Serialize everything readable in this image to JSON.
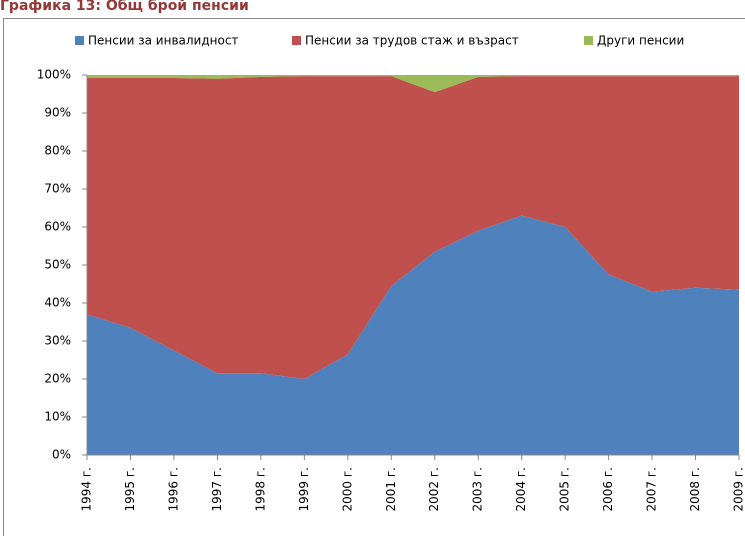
{
  "chart_data": {
    "type": "stacked_area_100",
    "title": "Графика 13: Общ брой пенсии",
    "categories": [
      "1994 г.",
      "1995 г.",
      "1996 г.",
      "1997 г.",
      "1998 г.",
      "1999 г.",
      "2000 г.",
      "2001 г.",
      "2002 г.",
      "2003 г.",
      "2004 г.",
      "2005 г.",
      "2006 г.",
      "2007 г.",
      "2008 г.",
      "2009 г."
    ],
    "series": [
      {
        "name": "Пенсии за инвалидност",
        "color": "#4f81bd",
        "values": [
          37,
          33.5,
          27.5,
          21.5,
          21.5,
          20,
          26.5,
          44.5,
          53.5,
          59,
          63,
          60,
          47.5,
          43,
          44,
          43.5
        ]
      },
      {
        "name": "Пенсии за трудов стаж и възраст",
        "color": "#c0504d",
        "values": [
          62.2,
          65.7,
          71.7,
          77.5,
          78,
          79.7,
          73.2,
          55.2,
          42,
          40.5,
          36.7,
          39.7,
          52.2,
          56.7,
          55.7,
          56.2
        ]
      },
      {
        "name": "Други пенсии",
        "color": "#9bbb59",
        "values": [
          0.8,
          0.8,
          0.8,
          1,
          0.5,
          0.3,
          0.3,
          0.3,
          4.5,
          0.5,
          0.3,
          0.3,
          0.3,
          0.3,
          0.3,
          0.3
        ]
      }
    ],
    "ylim": [
      0,
      100
    ],
    "yticks": [
      {
        "value": 0,
        "label": "0%"
      },
      {
        "value": 10,
        "label": "10%"
      },
      {
        "value": 20,
        "label": "20%"
      },
      {
        "value": 30,
        "label": "30%"
      },
      {
        "value": 40,
        "label": "40%"
      },
      {
        "value": 50,
        "label": "50%"
      },
      {
        "value": 60,
        "label": "60%"
      },
      {
        "value": 70,
        "label": "70%"
      },
      {
        "value": 80,
        "label": "80%"
      },
      {
        "value": 90,
        "label": "90%"
      },
      {
        "value": 100,
        "label": "100%"
      }
    ],
    "legend": "top"
  }
}
